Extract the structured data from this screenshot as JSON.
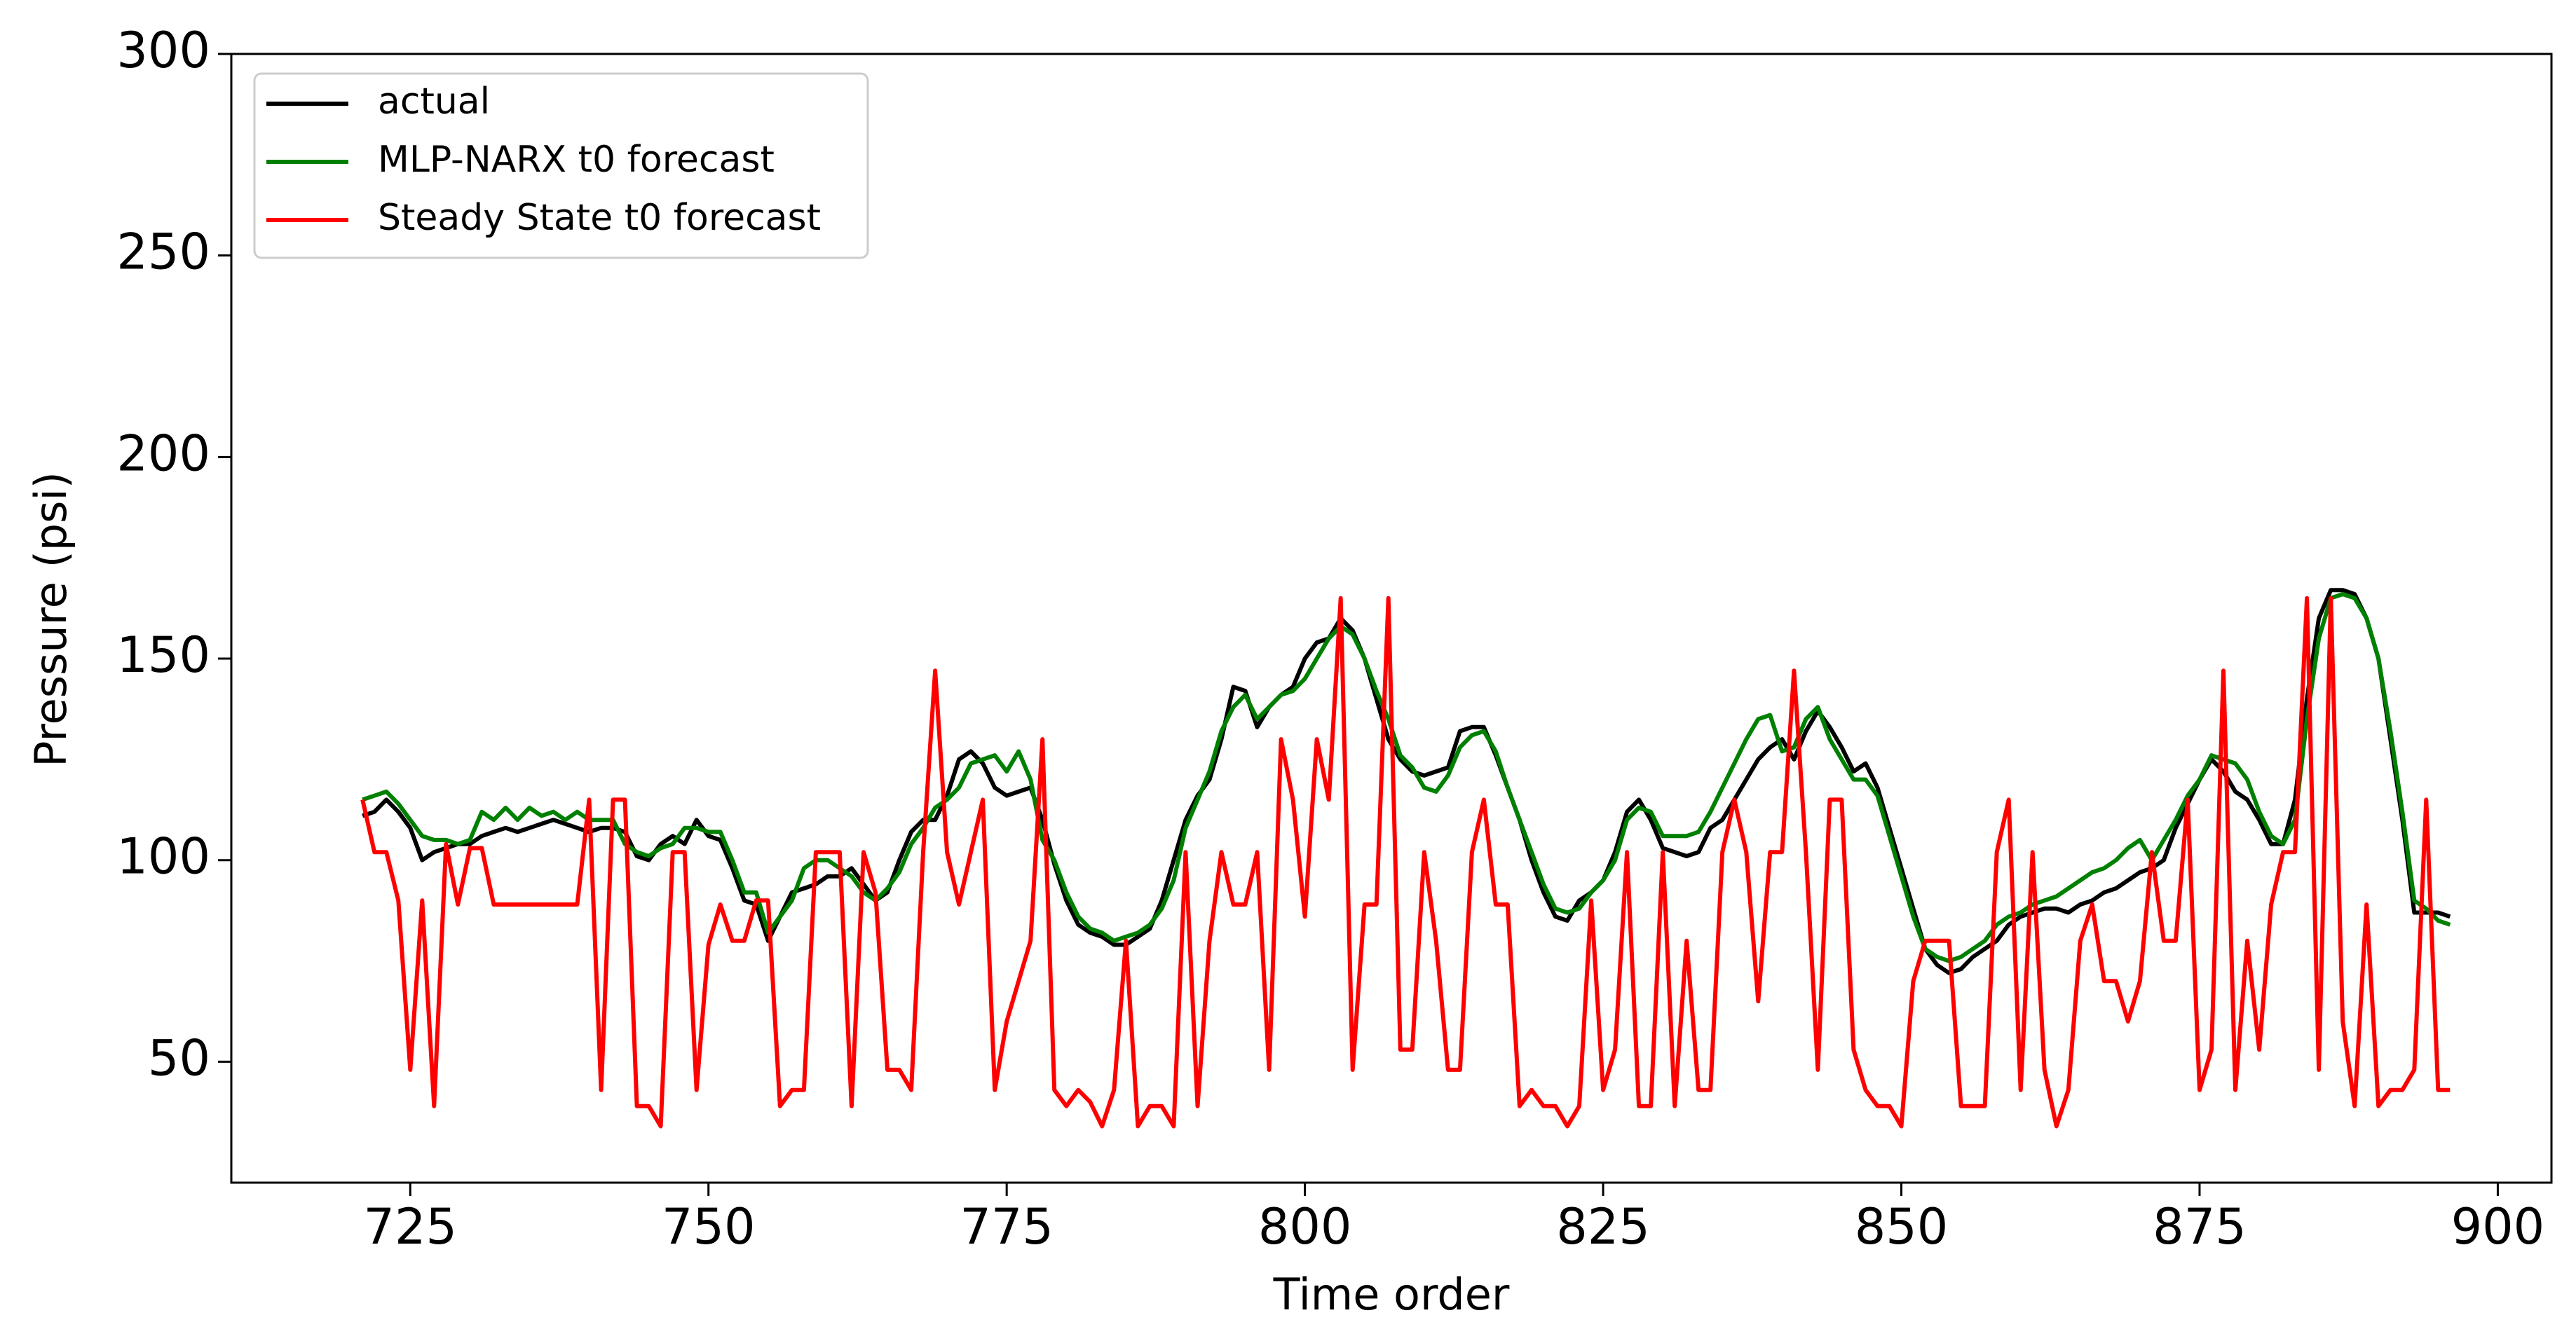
{
  "chart_data": {
    "type": "line",
    "xlabel": "Time order",
    "ylabel": "Pressure (psi)",
    "xlim": [
      710,
      904.5
    ],
    "ylim": [
      20,
      300
    ],
    "xticks": [
      725,
      750,
      775,
      800,
      825,
      850,
      875,
      900
    ],
    "yticks": [
      50,
      100,
      150,
      200,
      250,
      300
    ],
    "legend": "upper left",
    "x": [
      721,
      722,
      723,
      724,
      725,
      726,
      727,
      728,
      729,
      730,
      731,
      732,
      733,
      734,
      735,
      736,
      737,
      738,
      739,
      740,
      741,
      742,
      743,
      744,
      745,
      746,
      747,
      748,
      749,
      750,
      751,
      752,
      753,
      754,
      755,
      756,
      757,
      758,
      759,
      760,
      761,
      762,
      763,
      764,
      765,
      766,
      767,
      768,
      769,
      770,
      771,
      772,
      773,
      774,
      775,
      776,
      777,
      778,
      779,
      780,
      781,
      782,
      783,
      784,
      785,
      786,
      787,
      788,
      789,
      790,
      791,
      792,
      793,
      794,
      795,
      796,
      797,
      798,
      799,
      800,
      801,
      802,
      803,
      804,
      805,
      806,
      807,
      808,
      809,
      810,
      811,
      812,
      813,
      814,
      815,
      816,
      817,
      818,
      819,
      820,
      821,
      822,
      823,
      824,
      825,
      826,
      827,
      828,
      829,
      830,
      831,
      832,
      833,
      834,
      835,
      836,
      837,
      838,
      839,
      840,
      841,
      842,
      843,
      844,
      845,
      846,
      847,
      848,
      849,
      850,
      851,
      852,
      853,
      854,
      855,
      856,
      857,
      858,
      859,
      860,
      861,
      862,
      863,
      864,
      865,
      866,
      867,
      868,
      869,
      870,
      871,
      872,
      873,
      874,
      875,
      876,
      877,
      878,
      879,
      880,
      881,
      882,
      883,
      884,
      885,
      886,
      887,
      888,
      889,
      890,
      891,
      892,
      893,
      894,
      895,
      896
    ],
    "series": [
      {
        "name": "actual",
        "color": "#000000",
        "values": [
          111,
          112,
          115,
          112,
          108,
          100,
          102,
          103,
          104,
          104,
          106,
          107,
          108,
          107,
          108,
          109,
          110,
          109,
          108,
          107,
          108,
          108,
          107,
          101,
          100,
          104,
          106,
          104,
          110,
          106,
          105,
          98,
          90,
          89,
          80,
          86,
          92,
          93,
          94,
          96,
          96,
          98,
          94,
          90,
          92,
          100,
          107,
          110,
          110,
          116,
          125,
          127,
          124,
          118,
          116,
          117,
          118,
          110,
          99,
          90,
          84,
          82,
          81,
          79,
          79,
          81,
          83,
          90,
          100,
          110,
          116,
          120,
          130,
          143,
          142,
          133,
          138,
          141,
          143,
          150,
          154,
          155,
          160,
          157,
          150,
          140,
          130,
          125,
          122,
          121,
          122,
          123,
          132,
          133,
          133,
          126,
          118,
          110,
          100,
          92,
          86,
          85,
          90,
          92,
          95,
          102,
          112,
          115,
          110,
          103,
          102,
          101,
          102,
          108,
          110,
          115,
          120,
          125,
          128,
          130,
          125,
          132,
          137,
          133,
          128,
          122,
          124,
          118,
          108,
          98,
          88,
          78,
          74,
          72,
          73,
          76,
          78,
          80,
          84,
          86,
          87,
          88,
          88,
          87,
          89,
          90,
          92,
          93,
          95,
          97,
          98,
          100,
          108,
          114,
          120,
          125,
          122,
          117,
          115,
          110,
          104,
          104,
          115,
          140,
          160,
          167,
          167,
          166,
          160,
          150,
          130,
          110,
          87,
          87,
          87,
          86
        ]
      },
      {
        "name": "MLP-NARX t0 forecast",
        "color": "#008000",
        "values": [
          115,
          116,
          117,
          114,
          110,
          106,
          105,
          105,
          104,
          105,
          112,
          110,
          113,
          110,
          113,
          111,
          112,
          110,
          112,
          110,
          110,
          110,
          104,
          102,
          101,
          103,
          104,
          108,
          108,
          107,
          107,
          100,
          92,
          92,
          82,
          86,
          90,
          98,
          100,
          100,
          98,
          96,
          92,
          90,
          93,
          97,
          104,
          108,
          113,
          115,
          118,
          124,
          125,
          126,
          122,
          127,
          120,
          105,
          100,
          92,
          86,
          83,
          82,
          80,
          81,
          82,
          84,
          88,
          95,
          108,
          115,
          122,
          132,
          138,
          141,
          135,
          138,
          141,
          142,
          145,
          150,
          155,
          158,
          156,
          150,
          142,
          135,
          126,
          123,
          118,
          117,
          121,
          128,
          131,
          132,
          127,
          118,
          110,
          102,
          94,
          88,
          87,
          88,
          92,
          95,
          100,
          110,
          113,
          112,
          106,
          106,
          106,
          107,
          112,
          118,
          124,
          130,
          135,
          136,
          127,
          128,
          135,
          138,
          130,
          125,
          120,
          120,
          116,
          106,
          96,
          86,
          78,
          76,
          75,
          76,
          78,
          80,
          84,
          86,
          87,
          89,
          90,
          91,
          93,
          95,
          97,
          98,
          100,
          103,
          105,
          100,
          105,
          110,
          116,
          120,
          126,
          125,
          124,
          120,
          112,
          106,
          104,
          110,
          135,
          155,
          165,
          166,
          165,
          160,
          150,
          132,
          112,
          90,
          88,
          85,
          84
        ]
      },
      {
        "name": "Steady State t0 forecast",
        "color": "#ff0000",
        "values": [
          115,
          102,
          102,
          90,
          48,
          90,
          39,
          104,
          89,
          103,
          103,
          89,
          89,
          89,
          89,
          89,
          89,
          89,
          89,
          115,
          43,
          115,
          115,
          39,
          39,
          34,
          102,
          102,
          43,
          79,
          89,
          80,
          80,
          90,
          90,
          39,
          43,
          43,
          102,
          102,
          102,
          39,
          102,
          92,
          48,
          48,
          43,
          102,
          147,
          102,
          89,
          102,
          115,
          43,
          60,
          70,
          80,
          130,
          43,
          39,
          43,
          40,
          34,
          43,
          80,
          34,
          39,
          39,
          34,
          102,
          39,
          80,
          102,
          89,
          89,
          102,
          48,
          130,
          115,
          86,
          130,
          115,
          165,
          48,
          89,
          89,
          165,
          53,
          53,
          102,
          80,
          48,
          48,
          102,
          115,
          89,
          89,
          39,
          43,
          39,
          39,
          34,
          39,
          90,
          43,
          53,
          102,
          39,
          39,
          102,
          39,
          80,
          43,
          43,
          102,
          115,
          102,
          65,
          102,
          102,
          147,
          102,
          48,
          115,
          115,
          53,
          43,
          39,
          39,
          34,
          70,
          80,
          80,
          80,
          39,
          39,
          39,
          102,
          115,
          43,
          102,
          48,
          34,
          43,
          80,
          89,
          70,
          70,
          60,
          70,
          102,
          80,
          80,
          115,
          43,
          53,
          147,
          43,
          80,
          53,
          89,
          102,
          102,
          165,
          48,
          165,
          60,
          39,
          89,
          39,
          43,
          43,
          48,
          115,
          43,
          43
        ]
      }
    ]
  }
}
